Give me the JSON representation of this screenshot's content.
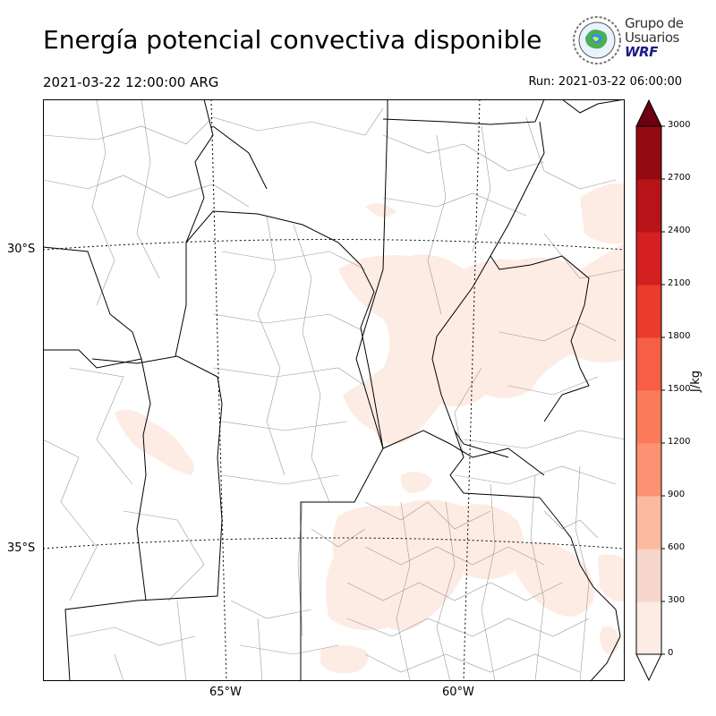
{
  "title": "Energía potencial convectiva disponible",
  "valid_time": "2021-03-22 12:00:00 ARG",
  "run_time": "Run: 2021-03-22 06:00:00",
  "logo": {
    "line1": "Grupo de",
    "line2": "Usuarios",
    "line3": "WRF"
  },
  "axes": {
    "lat_labels": [
      "30°S",
      "35°S"
    ],
    "lon_labels": [
      "65°W",
      "60°W"
    ]
  },
  "colorbar": {
    "unit": "J/kg",
    "ticks": [
      "3000",
      "2700",
      "2400",
      "2100",
      "1800",
      "1500",
      "1200",
      "900",
      "600",
      "300",
      "0"
    ],
    "colors": [
      "#fdece4",
      "#f6d6cb",
      "#fcbba1",
      "#fc9272",
      "#fb7b59",
      "#f65f44",
      "#ea3b2d",
      "#d42020",
      "#b71318",
      "#930912",
      "#6b0010"
    ]
  }
}
